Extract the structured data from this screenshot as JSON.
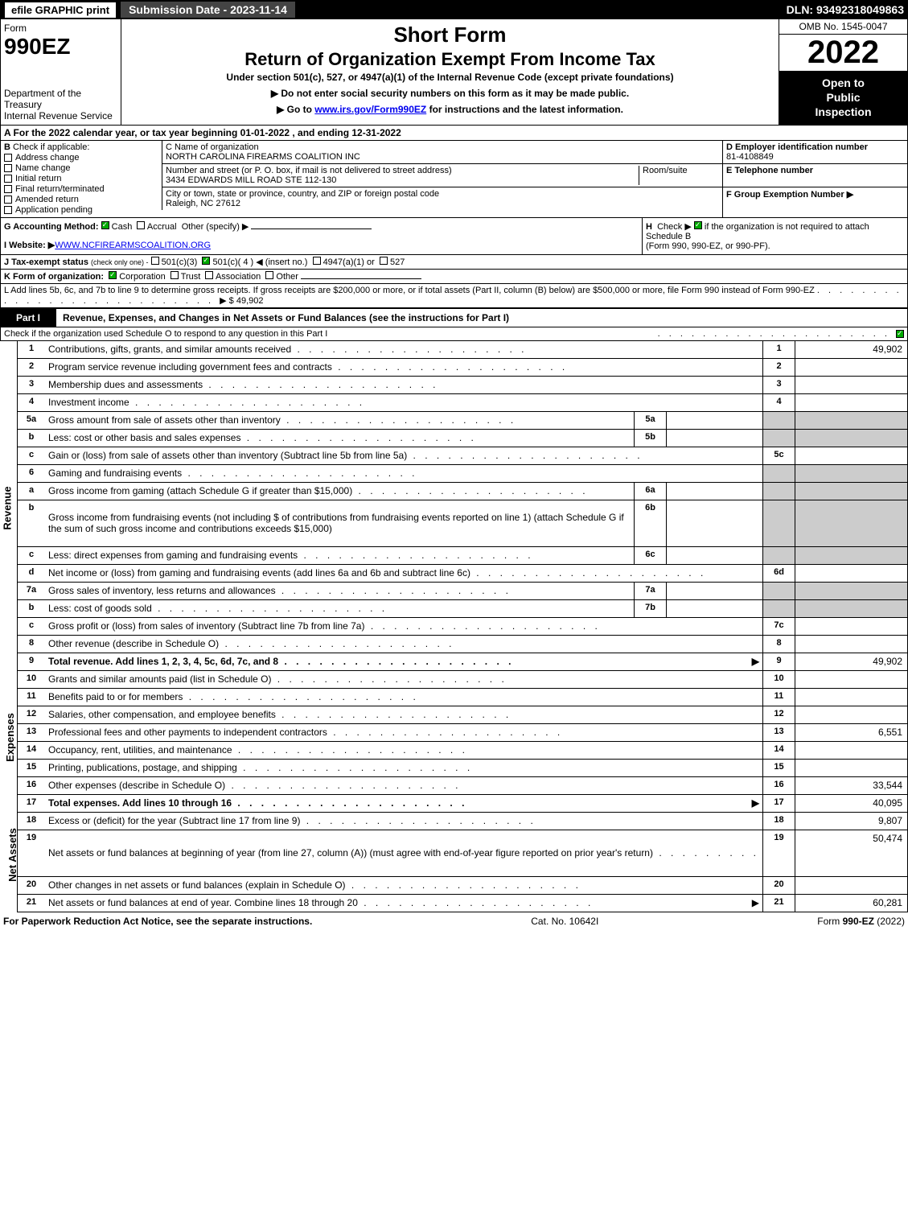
{
  "topbar": {
    "efile": "efile GRAPHIC print",
    "sub_date": "Submission Date - 2023-11-14",
    "dln": "DLN: 93492318049863"
  },
  "header": {
    "form_label": "Form",
    "form_num": "990EZ",
    "dept": "Department of the Treasury",
    "irs": "Internal Revenue Service",
    "short_form": "Short Form",
    "title": "Return of Organization Exempt From Income Tax",
    "subtitle": "Under section 501(c), 527, or 4947(a)(1) of the Internal Revenue Code (except private foundations)",
    "instr1": "▶ Do not enter social security numbers on this form as it may be made public.",
    "instr2_pre": "▶ Go to ",
    "instr2_link": "www.irs.gov/Form990EZ",
    "instr2_post": " for instructions and the latest information.",
    "omb": "OMB No. 1545-0047",
    "year": "2022",
    "open1": "Open to",
    "open2": "Public",
    "open3": "Inspection"
  },
  "section_a": "A  For the 2022 calendar year, or tax year beginning 01-01-2022 , and ending 12-31-2022",
  "section_b": {
    "label": "B",
    "check_label": "Check if applicable:",
    "items": [
      "Address change",
      "Name change",
      "Initial return",
      "Final return/terminated",
      "Amended return",
      "Application pending"
    ]
  },
  "section_c": {
    "name_label": "C Name of organization",
    "name": "NORTH CAROLINA FIREARMS COALITION INC",
    "street_label": "Number and street (or P. O. box, if mail is not delivered to street address)",
    "room_label": "Room/suite",
    "street": "3434 EDWARDS MILL ROAD STE 112-130",
    "city_label": "City or town, state or province, country, and ZIP or foreign postal code",
    "city": "Raleigh, NC  27612"
  },
  "section_d": {
    "ein_label": "D Employer identification number",
    "ein": "81-4108849",
    "tel_label": "E Telephone number",
    "f_label": "F Group Exemption Number  ▶"
  },
  "section_g": {
    "label": "G Accounting Method:",
    "cash": "Cash",
    "accrual": "Accrual",
    "other": "Other (specify) ▶"
  },
  "section_h": {
    "label": "H",
    "text1": "Check ▶",
    "text2": "if the organization is not required to attach Schedule B",
    "text3": "(Form 990, 990-EZ, or 990-PF)."
  },
  "section_i": {
    "label": "I Website: ▶",
    "url": "WWW.NCFIREARMSCOALITION.ORG"
  },
  "section_j": {
    "label": "J Tax-exempt status",
    "sub": "(check only one) -",
    "opts": [
      "501(c)(3)",
      "501(c)( 4 ) ◀ (insert no.)",
      "4947(a)(1) or",
      "527"
    ]
  },
  "section_k": {
    "label": "K Form of organization:",
    "opts": [
      "Corporation",
      "Trust",
      "Association",
      "Other"
    ]
  },
  "section_l": {
    "text": "L Add lines 5b, 6c, and 7b to line 9 to determine gross receipts. If gross receipts are $200,000 or more, or if total assets (Part II, column (B) below) are $500,000 or more, file Form 990 instead of Form 990-EZ",
    "amt": "▶ $ 49,902"
  },
  "part1": {
    "label": "Part I",
    "title": "Revenue, Expenses, and Changes in Net Assets or Fund Balances (see the instructions for Part I)",
    "subtitle": "Check if the organization used Schedule O to respond to any question in this Part I"
  },
  "side_labels": {
    "revenue": "Revenue",
    "expenses": "Expenses",
    "netassets": "Net Assets"
  },
  "lines": [
    {
      "n": "1",
      "d": "Contributions, gifts, grants, and similar amounts received",
      "c": "1",
      "v": "49,902"
    },
    {
      "n": "2",
      "d": "Program service revenue including government fees and contracts",
      "c": "2",
      "v": ""
    },
    {
      "n": "3",
      "d": "Membership dues and assessments",
      "c": "3",
      "v": ""
    },
    {
      "n": "4",
      "d": "Investment income",
      "c": "4",
      "v": ""
    },
    {
      "n": "5a",
      "d": "Gross amount from sale of assets other than inventory",
      "sc": "5a",
      "sv": "",
      "shaded": true
    },
    {
      "n": "b",
      "d": "Less: cost or other basis and sales expenses",
      "sc": "5b",
      "sv": "",
      "shaded": true
    },
    {
      "n": "c",
      "d": "Gain or (loss) from sale of assets other than inventory (Subtract line 5b from line 5a)",
      "c": "5c",
      "v": ""
    },
    {
      "n": "6",
      "d": "Gaming and fundraising events",
      "shaded": true
    },
    {
      "n": "a",
      "d": "Gross income from gaming (attach Schedule G if greater than $15,000)",
      "sc": "6a",
      "sv": "",
      "shaded": true
    },
    {
      "n": "b",
      "d": "Gross income from fundraising events (not including $                   of contributions from fundraising events reported on line 1) (attach Schedule G if the sum of such gross income and contributions exceeds $15,000)",
      "sc": "6b",
      "sv": "",
      "shaded": true,
      "tall": true
    },
    {
      "n": "c",
      "d": "Less: direct expenses from gaming and fundraising events",
      "sc": "6c",
      "sv": "",
      "shaded": true
    },
    {
      "n": "d",
      "d": "Net income or (loss) from gaming and fundraising events (add lines 6a and 6b and subtract line 6c)",
      "c": "6d",
      "v": ""
    },
    {
      "n": "7a",
      "d": "Gross sales of inventory, less returns and allowances",
      "sc": "7a",
      "sv": "",
      "shaded": true
    },
    {
      "n": "b",
      "d": "Less: cost of goods sold",
      "sc": "7b",
      "sv": "",
      "shaded": true
    },
    {
      "n": "c",
      "d": "Gross profit or (loss) from sales of inventory (Subtract line 7b from line 7a)",
      "c": "7c",
      "v": ""
    },
    {
      "n": "8",
      "d": "Other revenue (describe in Schedule O)",
      "c": "8",
      "v": ""
    },
    {
      "n": "9",
      "d": "Total revenue. Add lines 1, 2, 3, 4, 5c, 6d, 7c, and 8",
      "c": "9",
      "v": "49,902",
      "bold": true,
      "arrow": true
    }
  ],
  "exp_lines": [
    {
      "n": "10",
      "d": "Grants and similar amounts paid (list in Schedule O)",
      "c": "10",
      "v": ""
    },
    {
      "n": "11",
      "d": "Benefits paid to or for members",
      "c": "11",
      "v": ""
    },
    {
      "n": "12",
      "d": "Salaries, other compensation, and employee benefits",
      "c": "12",
      "v": ""
    },
    {
      "n": "13",
      "d": "Professional fees and other payments to independent contractors",
      "c": "13",
      "v": "6,551"
    },
    {
      "n": "14",
      "d": "Occupancy, rent, utilities, and maintenance",
      "c": "14",
      "v": ""
    },
    {
      "n": "15",
      "d": "Printing, publications, postage, and shipping",
      "c": "15",
      "v": ""
    },
    {
      "n": "16",
      "d": "Other expenses (describe in Schedule O)",
      "c": "16",
      "v": "33,544"
    },
    {
      "n": "17",
      "d": "Total expenses. Add lines 10 through 16",
      "c": "17",
      "v": "40,095",
      "bold": true,
      "arrow": true
    }
  ],
  "na_lines": [
    {
      "n": "18",
      "d": "Excess or (deficit) for the year (Subtract line 17 from line 9)",
      "c": "18",
      "v": "9,807"
    },
    {
      "n": "19",
      "d": "Net assets or fund balances at beginning of year (from line 27, column (A)) (must agree with end-of-year figure reported on prior year's return)",
      "c": "19",
      "v": "50,474",
      "tall": true
    },
    {
      "n": "20",
      "d": "Other changes in net assets or fund balances (explain in Schedule O)",
      "c": "20",
      "v": ""
    },
    {
      "n": "21",
      "d": "Net assets or fund balances at end of year. Combine lines 18 through 20",
      "c": "21",
      "v": "60,281",
      "arrow": true
    }
  ],
  "footer": {
    "left": "For Paperwork Reduction Act Notice, see the separate instructions.",
    "center": "Cat. No. 10642I",
    "right_pre": "Form ",
    "right_bold": "990-EZ",
    "right_post": " (2022)"
  }
}
